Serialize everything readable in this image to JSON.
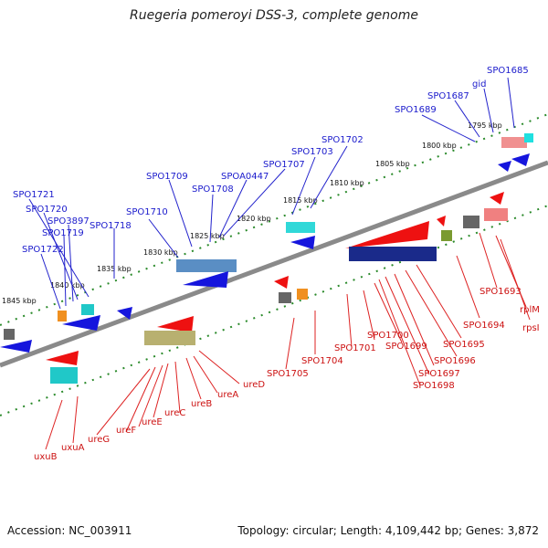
{
  "title": "Ruegeria pomeroyi DSS-3, complete genome",
  "accession": "Accession: NC_003911",
  "topology": "Topology: circular; Length: 4,109,442 bp; Genes: 3,872",
  "colors": {
    "forward_label": "#1a1acc",
    "reverse_label": "#cc1111",
    "backbone": "#888888",
    "ticks": "#2a8a2a"
  },
  "scale_labels": [
    "1795 kbp",
    "1800 kbp",
    "1805 kbp",
    "1810 kbp",
    "1815 kbp",
    "1820 kbp",
    "1825 kbp",
    "1830 kbp",
    "1835 kbp",
    "1840 kbp",
    "1845 kbp"
  ],
  "forward_genes": [
    "SPO1685",
    "gid",
    "SPO1687",
    "SPO1689",
    "SPO1702",
    "SPO1703",
    "SPO1707",
    "SPOA0447",
    "SPO1708",
    "SPO1709",
    "SPO1710",
    "SPO1718",
    "SPO1721",
    "SPO1720",
    "SPO3897",
    "SPO1719",
    "SPO1722"
  ],
  "reverse_genes": [
    "rpsI",
    "rplM",
    "SPO1693",
    "SPO1694",
    "SPO1695",
    "SPO1696",
    "SPO1697",
    "SPO1698",
    "SPO1699",
    "SPO1700",
    "SPO1701",
    "SPO1704",
    "SPO1705",
    "ureD",
    "ureA",
    "ureB",
    "ureC",
    "ureE",
    "ureF",
    "ureG",
    "uxuA",
    "uxuB"
  ]
}
